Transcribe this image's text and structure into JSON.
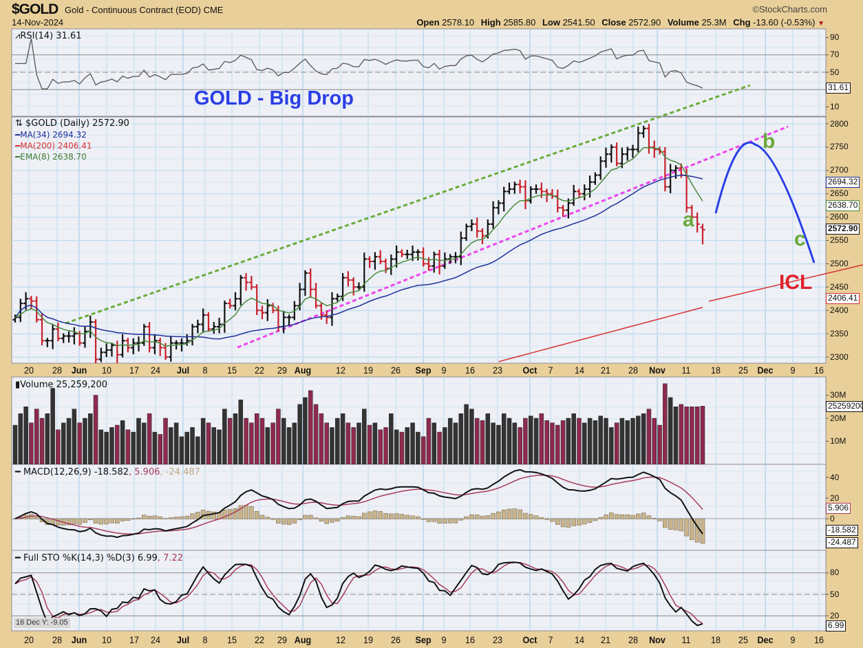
{
  "header": {
    "symbol": "$GOLD",
    "name": "Gold - Continuous Contract (EOD)",
    "exchange": "CME",
    "date": "14-Nov-2024",
    "brand": "©StockCharts.com",
    "open_label": "Open",
    "open": "2578.10",
    "high_label": "High",
    "high": "2585.80",
    "low_label": "Low",
    "low": "2541.50",
    "close_label": "Close",
    "close": "2572.90",
    "volume_label": "Volume",
    "volume": "25.3M",
    "chg_label": "Chg",
    "chg": "-13.60 (-0.53%)",
    "chg_direction": "down"
  },
  "chart_data": {
    "type": "ohlc-bar",
    "title": "GOLD - Big Drop",
    "colors": {
      "up": "#111111",
      "down": "#c8202a",
      "ma34": "#1f2f9a",
      "ma200": "#d83030",
      "ema8": "#4a8a3a",
      "upper_trendline": "#6aab3a",
      "lower_trendline": "#ee44ee",
      "projection": "#2a3ee6",
      "volume_up": "#333333",
      "volume_down": "#8e2a4e",
      "macd": "#111111",
      "signal": "#a83a5a",
      "histogram": "#c8b48c",
      "panel_bg": "#eef0f6",
      "grid": "#bcdcef",
      "frame": "#e9cf99"
    },
    "price_panel": {
      "legend": "$GOLD (Daily) 2572.90",
      "ma34_label": "MA(34) 2694.32",
      "ma200_label": "MA(200) 2406.41",
      "ema8_label": "EMA(8) 2638.70",
      "y_ticks": [
        "2800",
        "2750",
        "2700",
        "2650",
        "2600",
        "2550",
        "2500",
        "2450",
        "2400",
        "2350",
        "2300"
      ],
      "ylim": [
        2290,
        2815
      ],
      "last_ohlc": {
        "open": 2578.1,
        "high": 2585.8,
        "low": 2541.5,
        "close": 2572.9
      },
      "closes": [
        2385,
        2415,
        2425,
        2420,
        2380,
        2335,
        2335,
        2360,
        2340,
        2345,
        2345,
        2350,
        2330,
        2355,
        2375,
        2295,
        2310,
        2315,
        2325,
        2305,
        2335,
        2320,
        2330,
        2330,
        2365,
        2320,
        2335,
        2320,
        2300,
        2330,
        2330,
        2330,
        2335,
        2365,
        2370,
        2390,
        2360,
        2365,
        2370,
        2415,
        2410,
        2425,
        2470,
        2460,
        2450,
        2400,
        2395,
        2410,
        2400,
        2365,
        2385,
        2385,
        2410,
        2445,
        2480,
        2445,
        2410,
        2390,
        2385,
        2425,
        2430,
        2470,
        2465,
        2450,
        2450,
        2510,
        2505,
        2515,
        2505,
        2490,
        2510,
        2525,
        2520,
        2520,
        2525,
        2525,
        2500,
        2495,
        2520,
        2495,
        2510,
        2515,
        2515,
        2555,
        2580,
        2585,
        2570,
        2560,
        2585,
        2620,
        2630,
        2655,
        2660,
        2670,
        2665,
        2635,
        2660,
        2660,
        2655,
        2650,
        2645,
        2620,
        2615,
        2630,
        2655,
        2650,
        2660,
        2675,
        2690,
        2720,
        2735,
        2750,
        2715,
        2735,
        2745,
        2745,
        2780,
        2790,
        2750,
        2745,
        2740,
        2665,
        2700,
        2705,
        2690,
        2620,
        2600,
        2585,
        2572.9
      ],
      "ma200_tail": {
        "from_date": "Sep 23",
        "from_value": 2290,
        "to_value": 2406.41
      },
      "tags": {
        "ma34": "2694.32",
        "ema8": "2638.70",
        "close": "2572.90",
        "ma200": "2406.41"
      },
      "annotations": {
        "a": "a",
        "b": "b",
        "c": "c",
        "icl": "ICL"
      }
    },
    "rsi_panel": {
      "legend": "RSI(14) 31.61",
      "y_ticks": [
        "90",
        "70",
        "50",
        "10"
      ],
      "tag": "31.61",
      "ylim": [
        0,
        100
      ]
    },
    "volume_panel": {
      "legend": "Volume 25,259,200",
      "y_ticks": [
        "30M",
        "20M",
        "10M"
      ],
      "tag": "25259200",
      "unit": "M",
      "values": [
        17,
        22,
        25,
        18,
        24,
        20,
        22,
        33,
        15,
        18,
        20,
        24,
        18,
        20,
        22,
        30,
        15,
        14,
        16,
        17,
        19,
        15,
        14,
        20,
        18,
        22,
        14,
        13,
        20,
        16,
        18,
        12,
        14,
        16,
        12,
        20,
        18,
        16,
        15,
        24,
        20,
        22,
        28,
        20,
        18,
        22,
        20,
        16,
        18,
        24,
        20,
        16,
        18,
        26,
        29,
        32,
        26,
        22,
        18,
        16,
        20,
        22,
        18,
        16,
        18,
        24,
        17,
        18,
        15,
        16,
        22,
        15,
        14,
        16,
        18,
        14,
        12,
        20,
        18,
        14,
        16,
        20,
        18,
        22,
        26,
        24,
        20,
        19,
        22,
        18,
        17,
        22,
        20,
        18,
        16,
        20,
        21,
        20,
        22,
        19,
        18,
        17,
        19,
        20,
        22,
        20,
        18,
        20,
        19,
        21,
        20,
        16,
        18,
        20,
        19,
        20,
        21,
        22,
        24,
        20,
        17,
        35,
        29,
        25,
        26,
        25,
        25,
        25,
        25.26
      ]
    },
    "macd_panel": {
      "legend_main": "MACD(12,26,9) -18.582",
      "legend_signal": ", 5.906",
      "legend_hist": ", -24.487",
      "y_ticks": [
        "40",
        "20",
        "0"
      ],
      "tags": {
        "signal": "5.906",
        "macd": "-18.582",
        "hist": "-24.487"
      }
    },
    "sto_panel": {
      "legend_main": "Full STO %K(14,3) %D(3) 6.99",
      "legend_d": ", 7.22",
      "y_ticks": [
        "80",
        "50",
        "20"
      ],
      "tag": "6.99",
      "ylim": [
        0,
        100
      ]
    },
    "date_ticks": [
      {
        "label": "20",
        "bold": false
      },
      {
        "label": "28",
        "bold": false
      },
      {
        "label": "Jun",
        "bold": true
      },
      {
        "label": "10",
        "bold": false
      },
      {
        "label": "17",
        "bold": false
      },
      {
        "label": "24",
        "bold": false
      },
      {
        "label": "Jul",
        "bold": true
      },
      {
        "label": "8",
        "bold": false
      },
      {
        "label": "15",
        "bold": false
      },
      {
        "label": "22",
        "bold": false
      },
      {
        "label": "29",
        "bold": false
      },
      {
        "label": "Aug",
        "bold": true
      },
      {
        "label": "12",
        "bold": false
      },
      {
        "label": "19",
        "bold": false
      },
      {
        "label": "26",
        "bold": false
      },
      {
        "label": "Sep",
        "bold": true
      },
      {
        "label": "9",
        "bold": false
      },
      {
        "label": "16",
        "bold": false
      },
      {
        "label": "23",
        "bold": false
      },
      {
        "label": "Oct",
        "bold": true
      },
      {
        "label": "7",
        "bold": false
      },
      {
        "label": "14",
        "bold": false
      },
      {
        "label": "21",
        "bold": false
      },
      {
        "label": "28",
        "bold": false
      },
      {
        "label": "Nov",
        "bold": true
      },
      {
        "label": "11",
        "bold": false
      },
      {
        "label": "18",
        "bold": false
      },
      {
        "label": "25",
        "bold": false
      },
      {
        "label": "Dec",
        "bold": true
      },
      {
        "label": "9",
        "bold": false
      },
      {
        "label": "16",
        "bold": false
      }
    ],
    "x_range": [
      "May 16, 2024",
      "Dec 16, 2024"
    ],
    "grid": true
  },
  "tooltip": "16 Dec Y: -9.05"
}
